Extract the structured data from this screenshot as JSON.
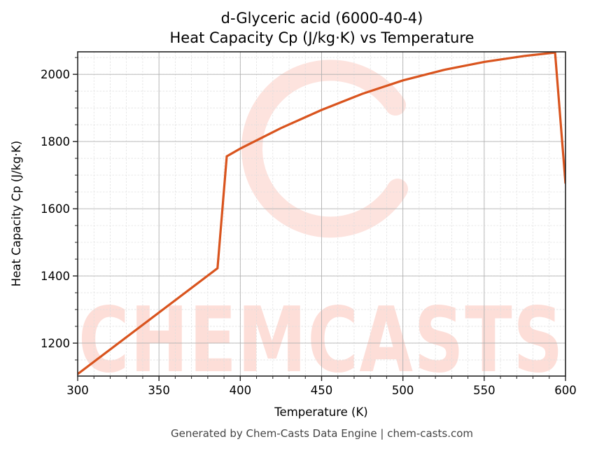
{
  "chart_data": {
    "type": "line",
    "title": "d-Glyceric acid (6000-40-4)",
    "subtitle": "Heat Capacity Cp (J/kg·K) vs Temperature",
    "xlabel": "Temperature (K)",
    "ylabel": "Heat Capacity Cp (J/kg·K)",
    "xlim": [
      300,
      600
    ],
    "ylim": [
      1102,
      2067
    ],
    "xticks": [
      300,
      350,
      400,
      450,
      500,
      550,
      600
    ],
    "yticks": [
      1200,
      1400,
      1600,
      1800,
      2000
    ],
    "x_minor_step": 10,
    "y_minor_step": 50,
    "grid": true,
    "legend": null,
    "series": [
      {
        "name": "Cp",
        "color": "#d9541e",
        "x": [
          300,
          386,
          391.7,
          400,
          425,
          450,
          475,
          500,
          525,
          550,
          575,
          593.6,
          600
        ],
        "values": [
          1108,
          1423,
          1756,
          1779,
          1840,
          1894,
          1942,
          1982,
          2013,
          2037,
          2055,
          2065,
          1675
        ]
      }
    ]
  },
  "watermark": {
    "text": "CHEMCASTS",
    "color": "#fdded8"
  },
  "footer": {
    "text": "Generated by Chem-Casts Data Engine | chem-casts.com"
  }
}
